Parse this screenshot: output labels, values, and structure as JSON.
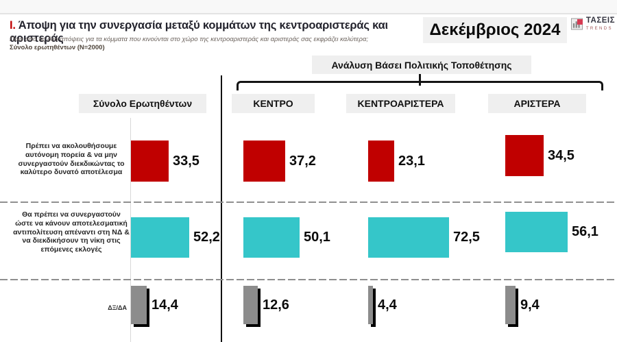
{
  "header": {
    "section_number": "I.",
    "title": "Άποψη για την συνεργασία μεταξύ κομμάτων της κεντροαριστεράς και αριστεράς",
    "subtitle": "Ποια από τις δύο απόψεις για τα κόμματα που κινούνται στο χώρο της κεντροαριστεράς και αριστεράς σας εκφράζει καλύτερα;",
    "sample": "Σύνολο ερωτηθέντων (N=2000)",
    "date": "Δεκέμβριος 2024",
    "logo": {
      "name": "ΤΑΣΕΙΣ",
      "sub": "TRENDS"
    }
  },
  "analysis_header": "Ανάλυση Βάσει Πολιτικής Τοποθέτησης",
  "columns": [
    {
      "label": "Σύνολο Ερωτηθέντων"
    },
    {
      "label": "ΚΕΝΤΡΟ"
    },
    {
      "label": "ΚΕΝΤΡΟΑΡΙΣΤΕΡΑ"
    },
    {
      "label": "ΑΡΙΣΤΕΡΑ"
    }
  ],
  "chart_data": {
    "type": "bar",
    "orientation": "horizontal",
    "unit": "percent",
    "title": "Άποψη για την συνεργασία μεταξύ κομμάτων της κεντροαριστεράς και αριστεράς",
    "categories": [
      "Σύνολο Ερωτηθέντων",
      "ΚΕΝΤΡΟ",
      "ΚΕΝΤΡΟΑΡΙΣΤΕΡΑ",
      "ΑΡΙΣΤΕΡΑ"
    ],
    "series": [
      {
        "name": "Πρέπει να ακολουθήσουμε αυτόνομη πορεία & να μην συνεργαστούν διεκδικώντας το καλύτερο δυνατό αποτέλεσμα",
        "color": "#C00000",
        "values": [
          33.5,
          37.2,
          23.1,
          34.5
        ],
        "labels": [
          "33,5",
          "37,2",
          "23,1",
          "34,5"
        ]
      },
      {
        "name": "Θα πρέπει να συνεργαστούν ώστε να κάνουν αποτελεσματική αντιπολίτευση απέναντι στη ΝΔ & να διεκδικήσουν τη νίκη στις επόμενες εκλογές",
        "color": "#35C6C9",
        "values": [
          52.2,
          50.1,
          72.5,
          56.1
        ],
        "labels": [
          "52,2",
          "50,1",
          "72,5",
          "56,1"
        ]
      },
      {
        "name": "ΔΞ/ΔΑ",
        "color": "#8C8C8C",
        "values": [
          14.4,
          12.6,
          4.4,
          9.4
        ],
        "labels": [
          "14,4",
          "12,6",
          "4,4",
          "9,4"
        ]
      }
    ],
    "xlim": [
      0,
      100
    ],
    "grid": false,
    "legend": false
  }
}
